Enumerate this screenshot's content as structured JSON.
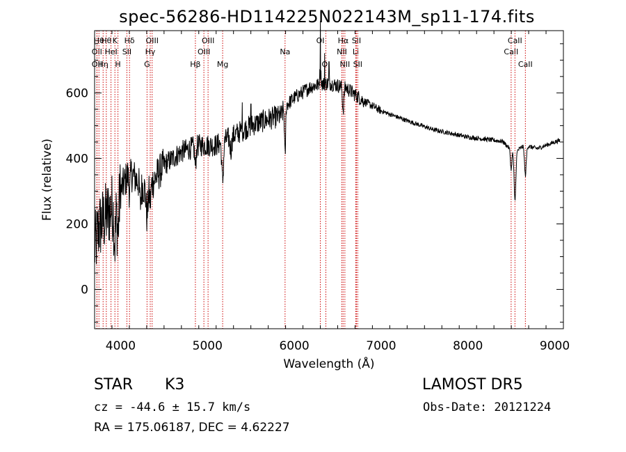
{
  "title": "spec-56286-HD114225N022143M_sp11-174.fits",
  "info": {
    "class": "STAR",
    "subclass": "K3",
    "survey": "LAMOST DR5",
    "cz_prefix": "cz = ",
    "cz": "-44.6 ± 15.7 km/s",
    "obs_date": "Obs-Date: 20121224",
    "radec": "RA = 175.06187, DEC =   4.62227"
  },
  "colors": {
    "line_marker": "#cc0000",
    "spectrum": "#000000"
  },
  "chart_data": {
    "type": "line",
    "xlabel": "Wavelength (Å)",
    "ylabel": "Flux (relative)",
    "xlim": [
      3700,
      9100
    ],
    "ylim": [
      -120,
      790
    ],
    "xticks": [
      4000,
      5000,
      6000,
      7000,
      8000,
      9000
    ],
    "yticks": [
      0,
      200,
      400,
      600
    ],
    "grid": false,
    "lines": [
      {
        "w": 3727,
        "label": "OII",
        "row": 1
      },
      {
        "w": 3727,
        "label": "OII",
        "row": 2
      },
      {
        "w": 3750,
        "label": "Hθ",
        "row": 0
      },
      {
        "w": 3798,
        "label": "Hη",
        "row": 2
      },
      {
        "w": 3835,
        "label": "Hθ",
        "row": 0
      },
      {
        "w": 3889,
        "label": "HeI",
        "row": 1
      },
      {
        "w": 3934,
        "label": "K",
        "row": 0
      },
      {
        "w": 3969,
        "label": "H",
        "row": 2
      },
      {
        "w": 4072,
        "label": "SII",
        "row": 1
      },
      {
        "w": 4102,
        "label": "Hδ",
        "row": 0
      },
      {
        "w": 4304,
        "label": "G",
        "row": 2
      },
      {
        "w": 4341,
        "label": "Hγ",
        "row": 1
      },
      {
        "w": 4363,
        "label": "OIII",
        "row": 0
      },
      {
        "w": 4861,
        "label": "Hβ",
        "row": 2
      },
      {
        "w": 4959,
        "label": "OIII",
        "row": 1
      },
      {
        "w": 5007,
        "label": "OIII",
        "row": 0
      },
      {
        "w": 5175,
        "label": "Mg",
        "row": 2
      },
      {
        "w": 5894,
        "label": "Na",
        "row": 1
      },
      {
        "w": 6300,
        "label": "OI",
        "row": 0
      },
      {
        "w": 6364,
        "label": "OI",
        "row": 2
      },
      {
        "w": 6548,
        "label": "NII",
        "row": 1
      },
      {
        "w": 6563,
        "label": "Hα",
        "row": 0
      },
      {
        "w": 6583,
        "label": "NII",
        "row": 2
      },
      {
        "w": 6708,
        "label": "Li",
        "row": 1
      },
      {
        "w": 6716,
        "label": "SII",
        "row": 0
      },
      {
        "w": 6731,
        "label": "SII",
        "row": 2
      },
      {
        "w": 8498,
        "label": "CaII",
        "row": 1
      },
      {
        "w": 8542,
        "label": "CaII",
        "row": 0
      },
      {
        "w": 8662,
        "label": "CaII",
        "row": 2
      }
    ],
    "spectrum": {
      "anchors": [
        [
          3700,
          120
        ],
        [
          3750,
          190
        ],
        [
          3800,
          210
        ],
        [
          3850,
          230
        ],
        [
          3900,
          250
        ],
        [
          4000,
          300
        ],
        [
          4100,
          360
        ],
        [
          4200,
          330
        ],
        [
          4300,
          300
        ],
        [
          4400,
          340
        ],
        [
          4500,
          380
        ],
        [
          4700,
          420
        ],
        [
          4900,
          440
        ],
        [
          5100,
          440
        ],
        [
          5300,
          470
        ],
        [
          5500,
          500
        ],
        [
          5700,
          520
        ],
        [
          5850,
          530
        ],
        [
          5900,
          560
        ],
        [
          6000,
          585
        ],
        [
          6200,
          620
        ],
        [
          6400,
          630
        ],
        [
          6600,
          615
        ],
        [
          6800,
          575
        ],
        [
          7000,
          545
        ],
        [
          7300,
          515
        ],
        [
          7600,
          488
        ],
        [
          8000,
          465
        ],
        [
          8400,
          452
        ],
        [
          8500,
          425
        ],
        [
          8550,
          420
        ],
        [
          8650,
          440
        ],
        [
          8800,
          430
        ],
        [
          9000,
          450
        ],
        [
          9060,
          455
        ]
      ],
      "features": [
        [
          3934,
          120,
          10
        ],
        [
          3969,
          110,
          10
        ],
        [
          4102,
          60,
          8
        ],
        [
          4227,
          60,
          8
        ],
        [
          4304,
          80,
          10
        ],
        [
          4341,
          50,
          8
        ],
        [
          4861,
          60,
          8
        ],
        [
          5175,
          120,
          10
        ],
        [
          5270,
          40,
          10
        ],
        [
          5894,
          160,
          6
        ],
        [
          6300,
          -40,
          8
        ],
        [
          6563,
          70,
          8
        ],
        [
          8498,
          60,
          8
        ],
        [
          8542,
          150,
          10
        ],
        [
          8662,
          90,
          10
        ]
      ],
      "spikes": [
        [
          6300,
          165
        ],
        [
          6350,
          90
        ],
        [
          6400,
          55
        ],
        [
          5400,
          55
        ],
        [
          5500,
          70
        ]
      ]
    }
  }
}
